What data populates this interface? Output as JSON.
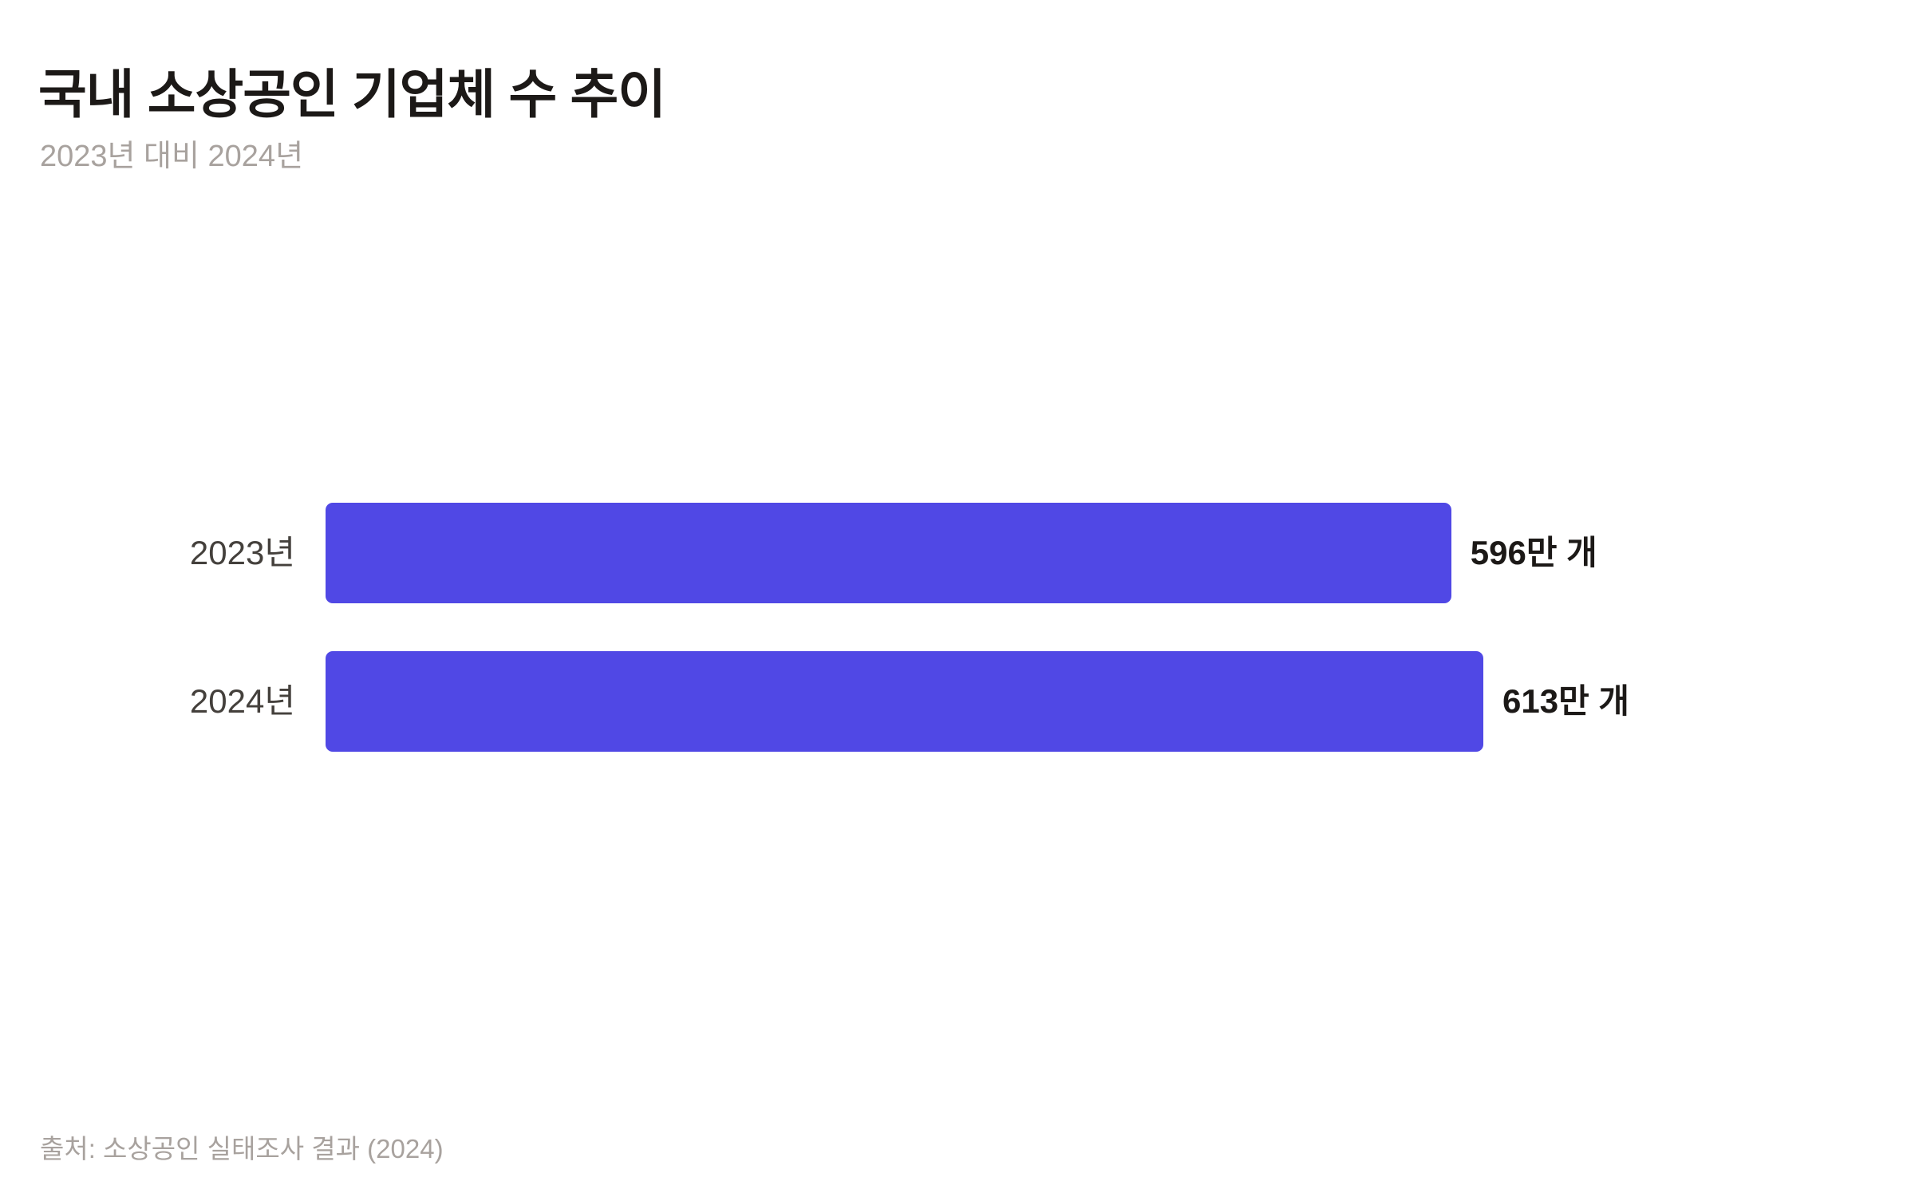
{
  "header": {
    "title": "국내 소상공인 기업체 수 추이",
    "subtitle": "2023년 대비 2024년"
  },
  "footer": {
    "source": "출처: 소상공인 실태조사 결과 (2024)"
  },
  "colors": {
    "bar": "#5048e5",
    "title": "#1c1917",
    "muted": "#a8a29e",
    "label": "#44403c"
  },
  "chart_data": {
    "type": "bar",
    "orientation": "horizontal",
    "title": "국내 소상공인 기업체 수 추이",
    "subtitle": "2023년 대비 2024년",
    "categories": [
      "2023년",
      "2024년"
    ],
    "values": [
      596,
      613
    ],
    "value_labels": [
      "596만 개",
      "613만 개"
    ],
    "unit": "만 개",
    "xlabel": "",
    "ylabel": "",
    "grid": false,
    "legend": null,
    "source": "출처: 소상공인 실태조사 결과 (2024)"
  }
}
